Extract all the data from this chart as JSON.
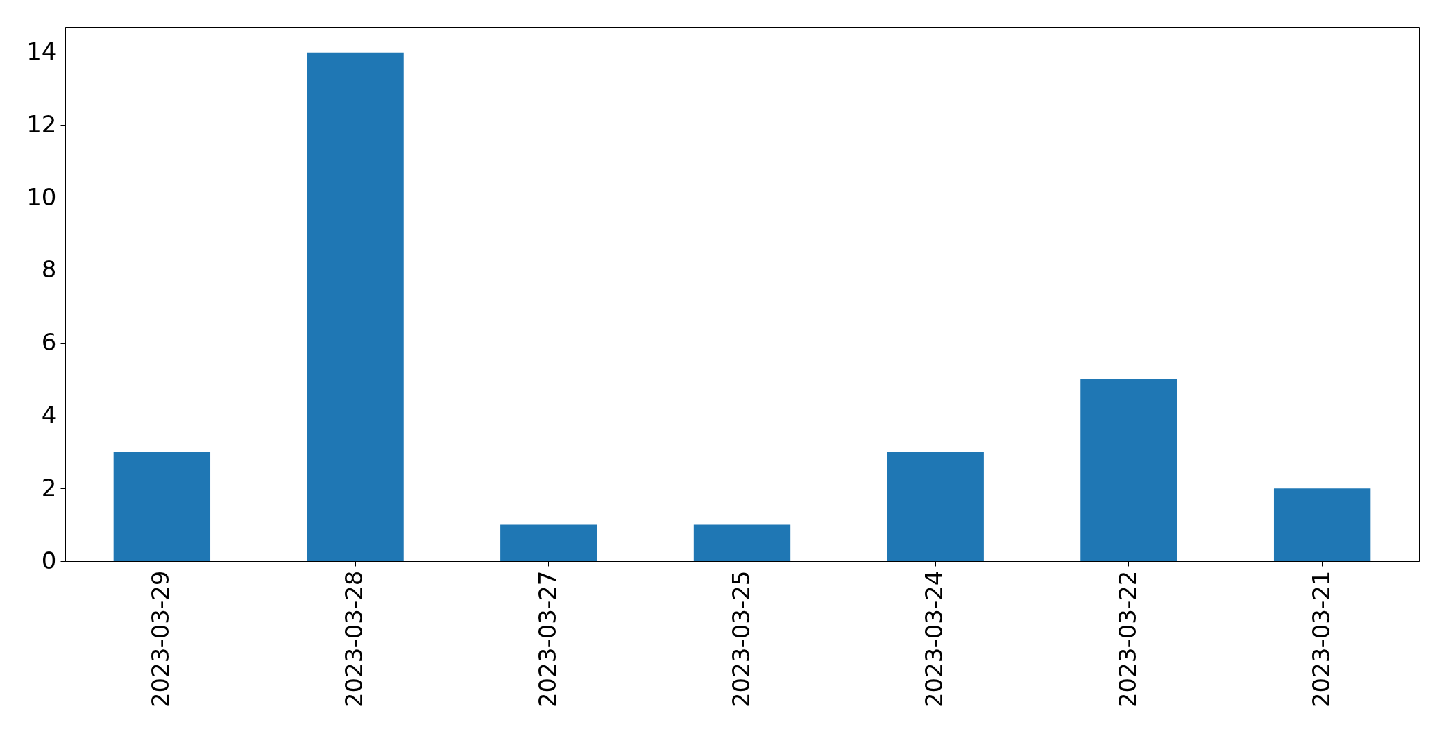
{
  "chart_data": {
    "type": "bar",
    "categories": [
      "2023-03-29",
      "2023-03-28",
      "2023-03-27",
      "2023-03-25",
      "2023-03-24",
      "2023-03-22",
      "2023-03-21"
    ],
    "values": [
      3,
      14,
      1,
      1,
      3,
      5,
      2
    ],
    "color": "#1f77b4",
    "ylim": [
      0,
      14.7
    ],
    "yticks": [
      0,
      2,
      4,
      6,
      8,
      10,
      12,
      14
    ]
  }
}
